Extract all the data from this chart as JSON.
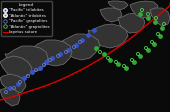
{
  "bg_color": "#0a0a0a",
  "continent_color": "#333333",
  "continent_edge_color": "#777777",
  "suture_color": "#dd0000",
  "pacific_trilobite_color": "#3355cc",
  "atlantic_trilobite_color": "#33aa33",
  "pacific_grapto_color": "#6677cc",
  "atlantic_grapto_color": "#55cc55",
  "legend_bg": "#0a0a0a",
  "legend_title": "Legend",
  "legend_labels": [
    "\"Pacific\" trilobites",
    "\"Atlantic\" trilobites",
    "\"Pacific\" graptolites",
    "\"Atlantic\" graptolites",
    "Iapetus suture"
  ],
  "xlim": [
    0,
    170
  ],
  "ylim": [
    0,
    112
  ],
  "continents": [
    {
      "points": [
        [
          108,
          2
        ],
        [
          110,
          5
        ],
        [
          115,
          8
        ],
        [
          120,
          10
        ],
        [
          125,
          8
        ],
        [
          128,
          5
        ],
        [
          125,
          2
        ],
        [
          118,
          1
        ],
        [
          112,
          1
        ],
        [
          108,
          2
        ]
      ]
    },
    {
      "points": [
        [
          100,
          10
        ],
        [
          102,
          15
        ],
        [
          106,
          20
        ],
        [
          112,
          22
        ],
        [
          118,
          20
        ],
        [
          122,
          15
        ],
        [
          120,
          10
        ],
        [
          114,
          8
        ],
        [
          107,
          8
        ],
        [
          100,
          10
        ]
      ]
    },
    {
      "points": [
        [
          118,
          18
        ],
        [
          120,
          25
        ],
        [
          124,
          30
        ],
        [
          130,
          33
        ],
        [
          138,
          32
        ],
        [
          143,
          28
        ],
        [
          145,
          22
        ],
        [
          142,
          16
        ],
        [
          136,
          13
        ],
        [
          128,
          14
        ],
        [
          122,
          17
        ],
        [
          118,
          18
        ]
      ]
    },
    {
      "points": [
        [
          130,
          5
        ],
        [
          132,
          10
        ],
        [
          136,
          15
        ],
        [
          142,
          18
        ],
        [
          150,
          17
        ],
        [
          156,
          12
        ],
        [
          158,
          6
        ],
        [
          154,
          2
        ],
        [
          146,
          1
        ],
        [
          138,
          2
        ],
        [
          132,
          4
        ],
        [
          130,
          5
        ]
      ]
    },
    {
      "points": [
        [
          150,
          10
        ],
        [
          152,
          16
        ],
        [
          156,
          22
        ],
        [
          162,
          26
        ],
        [
          168,
          24
        ],
        [
          170,
          18
        ],
        [
          168,
          12
        ],
        [
          162,
          8
        ],
        [
          155,
          8
        ],
        [
          150,
          10
        ]
      ]
    },
    {
      "points": [
        [
          88,
          30
        ],
        [
          90,
          36
        ],
        [
          95,
          42
        ],
        [
          102,
          46
        ],
        [
          110,
          48
        ],
        [
          118,
          46
        ],
        [
          124,
          42
        ],
        [
          128,
          36
        ],
        [
          126,
          30
        ],
        [
          120,
          26
        ],
        [
          112,
          24
        ],
        [
          104,
          25
        ],
        [
          96,
          28
        ],
        [
          90,
          31
        ],
        [
          88,
          30
        ]
      ]
    },
    {
      "points": [
        [
          60,
          42
        ],
        [
          62,
          48
        ],
        [
          67,
          54
        ],
        [
          74,
          58
        ],
        [
          82,
          60
        ],
        [
          90,
          58
        ],
        [
          96,
          52
        ],
        [
          100,
          46
        ],
        [
          98,
          40
        ],
        [
          92,
          36
        ],
        [
          84,
          34
        ],
        [
          76,
          34
        ],
        [
          68,
          38
        ],
        [
          62,
          41
        ],
        [
          60,
          42
        ]
      ]
    },
    {
      "points": [
        [
          30,
          48
        ],
        [
          32,
          54
        ],
        [
          38,
          60
        ],
        [
          46,
          64
        ],
        [
          56,
          66
        ],
        [
          64,
          64
        ],
        [
          70,
          58
        ],
        [
          72,
          52
        ],
        [
          70,
          46
        ],
        [
          64,
          42
        ],
        [
          56,
          40
        ],
        [
          46,
          40
        ],
        [
          38,
          44
        ],
        [
          32,
          48
        ],
        [
          30,
          48
        ]
      ]
    },
    {
      "points": [
        [
          5,
          54
        ],
        [
          8,
          60
        ],
        [
          14,
          66
        ],
        [
          22,
          70
        ],
        [
          32,
          72
        ],
        [
          40,
          70
        ],
        [
          46,
          64
        ],
        [
          48,
          58
        ],
        [
          46,
          52
        ],
        [
          40,
          48
        ],
        [
          32,
          46
        ],
        [
          22,
          46
        ],
        [
          14,
          50
        ],
        [
          8,
          54
        ],
        [
          5,
          54
        ]
      ]
    },
    {
      "points": [
        [
          0,
          62
        ],
        [
          3,
          68
        ],
        [
          8,
          74
        ],
        [
          16,
          78
        ],
        [
          24,
          78
        ],
        [
          30,
          74
        ],
        [
          32,
          68
        ],
        [
          28,
          62
        ],
        [
          22,
          58
        ],
        [
          14,
          56
        ],
        [
          6,
          58
        ],
        [
          0,
          62
        ]
      ]
    },
    {
      "points": [
        [
          0,
          78
        ],
        [
          2,
          84
        ],
        [
          8,
          90
        ],
        [
          16,
          94
        ],
        [
          22,
          92
        ],
        [
          26,
          86
        ],
        [
          24,
          80
        ],
        [
          18,
          76
        ],
        [
          10,
          74
        ],
        [
          3,
          76
        ],
        [
          0,
          78
        ]
      ]
    },
    {
      "points": [
        [
          0,
          90
        ],
        [
          2,
          96
        ],
        [
          6,
          102
        ],
        [
          12,
          106
        ],
        [
          18,
          104
        ],
        [
          20,
          98
        ],
        [
          18,
          92
        ],
        [
          12,
          88
        ],
        [
          6,
          88
        ],
        [
          0,
          90
        ]
      ]
    }
  ],
  "suture": {
    "x": [
      0,
      15,
      30,
      45,
      60,
      75,
      90,
      105,
      120,
      135,
      150,
      165,
      170
    ],
    "y": [
      100,
      96,
      91,
      86,
      80,
      73,
      65,
      56,
      46,
      35,
      22,
      10,
      4
    ]
  },
  "pacific_trilobites": [
    [
      10,
      88
    ],
    [
      18,
      84
    ],
    [
      24,
      78
    ],
    [
      32,
      72
    ],
    [
      40,
      68
    ],
    [
      46,
      62
    ],
    [
      52,
      58
    ],
    [
      60,
      54
    ],
    [
      68,
      50
    ],
    [
      76,
      45
    ],
    [
      82,
      40
    ],
    [
      88,
      35
    ],
    [
      94,
      30
    ]
  ],
  "atlantic_trilobites": [
    [
      96,
      48
    ],
    [
      104,
      54
    ],
    [
      110,
      60
    ],
    [
      118,
      64
    ],
    [
      126,
      68
    ],
    [
      134,
      62
    ],
    [
      140,
      56
    ],
    [
      148,
      50
    ],
    [
      154,
      44
    ],
    [
      160,
      36
    ],
    [
      162,
      28
    ],
    [
      155,
      22
    ],
    [
      148,
      18
    ],
    [
      140,
      14
    ]
  ],
  "pacific_graptolites": [
    [
      6,
      92
    ],
    [
      14,
      88
    ],
    [
      20,
      82
    ],
    [
      28,
      76
    ],
    [
      36,
      70
    ],
    [
      44,
      65
    ],
    [
      50,
      60
    ],
    [
      58,
      56
    ],
    [
      66,
      52
    ],
    [
      74,
      47
    ],
    [
      80,
      42
    ]
  ],
  "atlantic_graptolites": [
    [
      100,
      52
    ],
    [
      108,
      58
    ],
    [
      116,
      62
    ],
    [
      124,
      66
    ],
    [
      132,
      60
    ],
    [
      138,
      54
    ],
    [
      146,
      48
    ],
    [
      152,
      42
    ],
    [
      158,
      34
    ],
    [
      164,
      24
    ],
    [
      156,
      18
    ],
    [
      148,
      14
    ],
    [
      142,
      10
    ]
  ]
}
